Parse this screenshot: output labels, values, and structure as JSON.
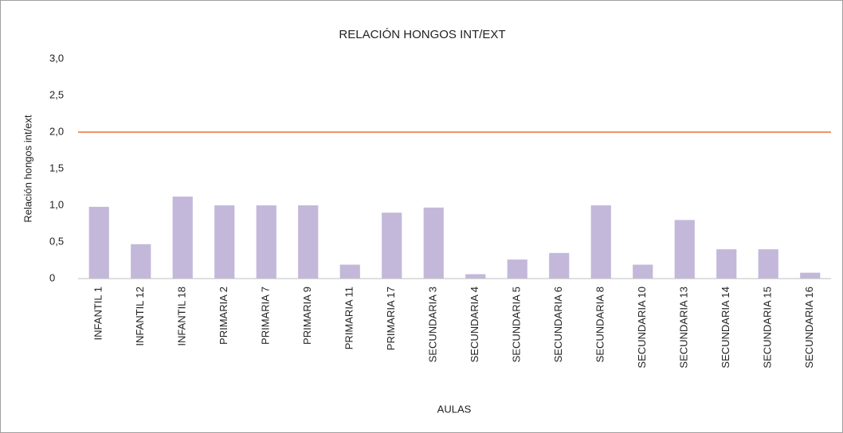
{
  "chart_data": {
    "type": "bar",
    "title": "RELACIÓN HONGOS INT/EXT",
    "y_label": "Relación hongos int/ext",
    "x_label": "AULAS",
    "categories": [
      "INFANTIL 1",
      "INFANTIL 12",
      "INFANTIL 18",
      "PRIMARIA 2",
      "PRIMARIA 7",
      "PRIMARIA 9",
      "PRIMARIA 11",
      "PRIMARIA 17",
      "SECUNDARIA 3",
      "SECUNDARIA 4",
      "SECUNDARIA 5",
      "SECUNDARIA 6",
      "SECUNDARIA 8",
      "SECUNDARIA 10",
      "SECUNDARIA 13",
      "SECUNDARIA 14",
      "SECUNDARIA 15",
      "SECUNDARIA 16"
    ],
    "values": [
      0.98,
      0.47,
      1.12,
      1.0,
      1.0,
      1.0,
      0.19,
      0.9,
      0.97,
      0.06,
      0.26,
      0.35,
      1.0,
      0.19,
      0.8,
      0.4,
      0.4,
      0.08
    ],
    "color": "#c3b8da",
    "ylim": [
      0,
      3
    ],
    "yticks": [
      0,
      {
        "value": 0.5,
        "label": "0,5"
      },
      {
        "value": 1,
        "label": "1,0"
      },
      {
        "value": 1.5,
        "label": "1,5"
      },
      {
        "value": 2,
        "label": "2,0"
      },
      {
        "value": 2.5,
        "label": "2,5"
      },
      {
        "value": 3,
        "label": "3,0"
      }
    ],
    "reference_line": {
      "value": 2,
      "color": "#e8703a"
    },
    "grid": false
  }
}
